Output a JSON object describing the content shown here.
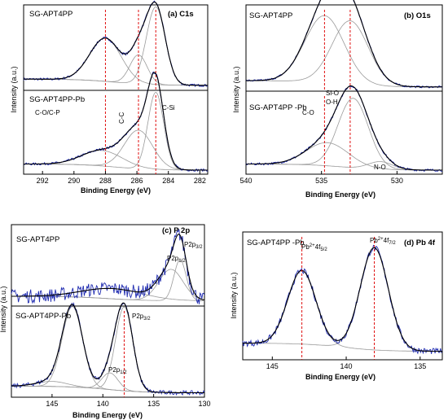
{
  "chart_data": [
    {
      "id": "a",
      "type": "line",
      "panel_label": "(a) C1s",
      "xlabel": "Binding Energy (eV)",
      "ylabel": "Intensity (a.u.)",
      "x_reversed": true,
      "xlim": [
        293.2,
        281.5
      ],
      "xticks": [
        292,
        290,
        288,
        286,
        284,
        282
      ],
      "subplots": [
        {
          "label": "SG-APT4PP",
          "peaks": [
            {
              "center": 288.0,
              "amp": 0.55,
              "width": 1.0
            },
            {
              "center": 285.9,
              "amp": 0.37,
              "width": 0.55
            },
            {
              "center": 284.8,
              "amp": 0.99,
              "width": 0.6
            }
          ],
          "vlines": [
            288.0,
            285.9,
            284.8
          ]
        },
        {
          "label": "SG-APT4PP-Pb",
          "peaks": [
            {
              "center": 288.2,
              "amp": 0.2,
              "width": 1.3
            },
            {
              "center": 285.9,
              "amp": 0.5,
              "width": 0.9
            },
            {
              "center": 284.8,
              "amp": 1.0,
              "width": 0.5
            }
          ],
          "vlines": [
            288.0,
            285.9,
            284.8
          ],
          "annotations": [
            "C-O/C-P",
            "C-C",
            "C-Si"
          ]
        }
      ]
    },
    {
      "id": "b",
      "type": "line",
      "panel_label": "(b) O1s",
      "xlabel": "Binding Energy (eV)",
      "ylabel": "Intensity (a.u.)",
      "x_reversed": true,
      "xlim": [
        540,
        527
      ],
      "xticks": [
        540,
        535,
        530
      ],
      "subplots": [
        {
          "label": "SG-APT4PP",
          "peaks": [
            {
              "center": 534.8,
              "amp": 0.84,
              "width": 1.3
            },
            {
              "center": 533.1,
              "amp": 0.8,
              "width": 1.2
            }
          ],
          "vlines": [
            534.8,
            533.1
          ]
        },
        {
          "label": "SG-APT4PP -Pb",
          "peaks": [
            {
              "center": 534.6,
              "amp": 0.3,
              "width": 1.4
            },
            {
              "center": 532.9,
              "amp": 0.9,
              "width": 1.0
            },
            {
              "center": 531.1,
              "amp": 0.1,
              "width": 0.8
            }
          ],
          "vlines": [
            534.8,
            533.1
          ],
          "annotations": [
            "C-O",
            "Si-O",
            "O-H",
            "N-O"
          ]
        }
      ]
    },
    {
      "id": "c",
      "type": "line",
      "panel_label": "(c) P 2p",
      "xlabel": "Binding Energy (eV)",
      "ylabel": "Intensity (a.u.)",
      "x_reversed": true,
      "xlim": [
        149,
        130
      ],
      "xticks": [
        145,
        140,
        135,
        130
      ],
      "subplots": [
        {
          "label": "SG-APT4PP",
          "peaks": [
            {
              "center": 133.3,
              "amp": 0.55,
              "width": 1.2
            },
            {
              "center": 132.4,
              "amp": 0.72,
              "width": 0.6
            },
            {
              "center": 139.0,
              "amp": 0.18,
              "width": 3.0
            }
          ],
          "annotations": [
            "P2p1/2",
            "P2p3/2"
          ]
        },
        {
          "label": "SG-APT4PP-Pb",
          "peaks": [
            {
              "center": 143.0,
              "amp": 0.96,
              "width": 1.0
            },
            {
              "center": 137.9,
              "amp": 1.0,
              "width": 0.85
            },
            {
              "center": 139.3,
              "amp": 0.2,
              "width": 0.8
            },
            {
              "center": 145.0,
              "amp": 0.06,
              "width": 1.5
            }
          ],
          "vlines": [
            137.9
          ],
          "annotations": [
            "P2p3/2",
            "P2p1/2"
          ]
        }
      ]
    },
    {
      "id": "d",
      "type": "line",
      "panel_label": "(d) Pb 4f",
      "xlabel": "Binding Energy (eV)",
      "ylabel": "Intensity (a.u.)",
      "x_reversed": true,
      "xlim": [
        147,
        133.5
      ],
      "xticks": [
        145,
        140,
        135
      ],
      "subplots": [
        {
          "label": "SG-APT4PP -Pb",
          "peaks": [
            {
              "center": 143.0,
              "amp": 0.72,
              "width": 0.95
            },
            {
              "center": 138.1,
              "amp": 1.0,
              "width": 0.95
            }
          ],
          "vlines": [
            143.0,
            138.1
          ],
          "annotations": [
            "Pb2+4f5/2",
            "Pb2+4f7/2"
          ]
        }
      ]
    }
  ]
}
